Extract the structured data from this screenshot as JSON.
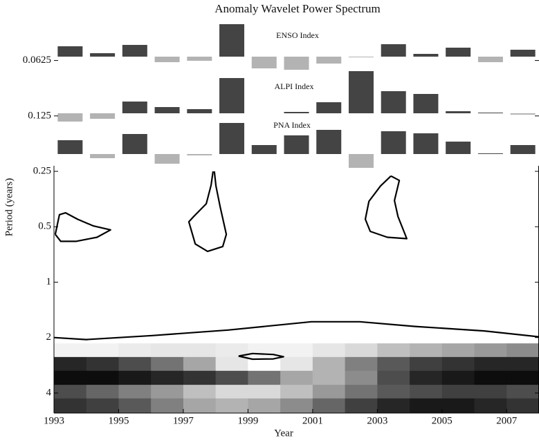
{
  "chart_data": {
    "type": "wavelet",
    "title": "Anomaly Wavelet Power Spectrum",
    "xlabel": "Year",
    "ylabel": "Period (years)",
    "xlim": [
      1993,
      2008
    ],
    "xticks": [
      1993,
      1995,
      1997,
      1999,
      2001,
      2003,
      2005,
      2007
    ],
    "ylim": [
      0.038,
      5.14
    ],
    "yticks": [
      0.0625,
      0.125,
      0.25,
      0.5,
      1,
      2,
      4
    ],
    "ylog": true,
    "yinvert": true,
    "power": {
      "year_edges": [
        1993,
        1994,
        1995,
        1996,
        1997,
        1998,
        1999,
        2000,
        2001,
        2002,
        2003,
        2004,
        2005,
        2006,
        2007,
        2008
      ],
      "period_edges": [
        2.15,
        2.55,
        3.03,
        3.61,
        4.28,
        5.14
      ],
      "values": [
        [
          0.05,
          0.05,
          0.08,
          0.1,
          0.1,
          0.08,
          0.05,
          0.05,
          0.1,
          0.15,
          0.25,
          0.3,
          0.35,
          0.4,
          0.45
        ],
        [
          0.85,
          0.8,
          0.7,
          0.55,
          0.35,
          0.1,
          0.0,
          0.1,
          0.3,
          0.5,
          0.65,
          0.75,
          0.8,
          0.85,
          0.85
        ],
        [
          0.95,
          0.95,
          0.9,
          0.85,
          0.8,
          0.7,
          0.55,
          0.35,
          0.3,
          0.45,
          0.7,
          0.85,
          0.9,
          0.95,
          0.95
        ],
        [
          0.7,
          0.6,
          0.5,
          0.4,
          0.25,
          0.15,
          0.15,
          0.25,
          0.4,
          0.55,
          0.65,
          0.7,
          0.75,
          0.75,
          0.7
        ],
        [
          0.8,
          0.75,
          0.65,
          0.5,
          0.35,
          0.3,
          0.35,
          0.45,
          0.6,
          0.75,
          0.85,
          0.9,
          0.9,
          0.85,
          0.8
        ]
      ]
    },
    "contours": [
      {
        "x": [
          1993.04,
          1993.17,
          1993.36,
          1993.73,
          1994.22,
          1994.75,
          1994.33,
          1993.68,
          1993.21,
          1993.04
        ],
        "y": [
          0.55,
          0.43,
          0.42,
          0.455,
          0.495,
          0.52,
          0.57,
          0.6,
          0.6,
          0.55
        ]
      },
      {
        "x": [
          1997.92,
          1997.86,
          1997.71,
          1997.32,
          1997.17,
          1997.37,
          1997.75,
          1998.22,
          1998.33,
          1998.14,
          1998.01,
          1997.96
        ],
        "y": [
          0.25,
          0.297,
          0.375,
          0.44,
          0.47,
          0.62,
          0.68,
          0.64,
          0.55,
          0.39,
          0.3,
          0.25
        ]
      },
      {
        "x": [
          2003.42,
          2003.1,
          2002.74,
          2002.63,
          2002.78,
          2003.31,
          2003.91,
          2003.64,
          2003.53,
          2003.68,
          2003.42
        ],
        "y": [
          0.265,
          0.3,
          0.364,
          0.455,
          0.53,
          0.57,
          0.58,
          0.44,
          0.36,
          0.28,
          0.265
        ]
      },
      {
        "x": [
          1998.71,
          1999.14,
          1999.78,
          2000.1,
          1999.78,
          1999.14,
          1998.71
        ],
        "y": [
          2.52,
          2.44,
          2.47,
          2.54,
          2.61,
          2.62,
          2.52
        ]
      },
      {
        "x": [
          1993,
          1994,
          1996.04,
          1998.39,
          2000.96,
          2002.46,
          2004.17,
          2006.31,
          2008
        ],
        "y": [
          2.0,
          2.05,
          1.95,
          1.82,
          1.64,
          1.64,
          1.74,
          1.84,
          1.98
        ]
      }
    ],
    "indices": {
      "years": [
        1993,
        1994,
        1995,
        1996,
        1997,
        1998,
        1999,
        2000,
        2001,
        2002,
        2003,
        2004,
        2005,
        2006,
        2007
      ],
      "positive_color": "#444444",
      "negative_color": "#b3b3b3",
      "series": [
        {
          "name": "ENSO Index",
          "values": [
            0.75,
            0.25,
            0.85,
            -0.4,
            -0.3,
            2.35,
            -0.85,
            -0.95,
            -0.5,
            -0.05,
            0.9,
            0.2,
            0.65,
            -0.4,
            0.5
          ]
        },
        {
          "name": "ALPI Index",
          "values": [
            -0.6,
            -0.4,
            0.85,
            0.45,
            0.3,
            2.55,
            0,
            0.1,
            0.8,
            3.05,
            1.6,
            1.4,
            0.15,
            0.05,
            -0.1
          ]
        },
        {
          "name": "PNA Index",
          "values": [
            1.0,
            -0.3,
            1.45,
            -0.7,
            -0.1,
            2.25,
            0.65,
            1.35,
            1.75,
            -1.0,
            1.65,
            1.5,
            0.9,
            0.05,
            0.65
          ]
        }
      ]
    }
  }
}
